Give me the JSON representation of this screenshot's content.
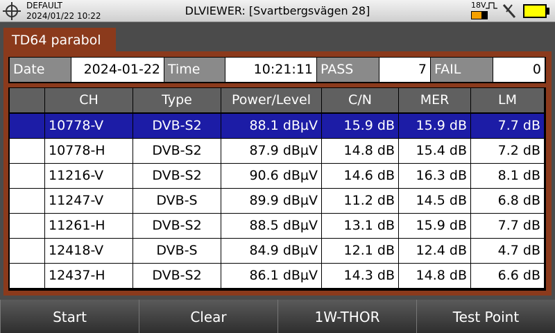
{
  "status": {
    "profile": "DEFAULT",
    "datetime": "2024/01/22 10:22",
    "title": "DLVIEWER: [Svartbergsvägen 28]",
    "voltage": "18V"
  },
  "tab": "TD64 parabol",
  "summary": [
    {
      "label": "Date",
      "value": "2024-01-22"
    },
    {
      "label": "Time",
      "value": "10:21:11"
    },
    {
      "label": "PASS",
      "value": 7
    },
    {
      "label": "FAIL",
      "value": 0
    }
  ],
  "table": {
    "header": [
      "CH",
      "Type",
      "Power/Level",
      "C/N",
      "MER",
      "LM"
    ],
    "rows": [
      [
        "10778-V",
        "DVB-S2",
        "88.1 dBµV",
        "15.9 dB",
        "15.9 dB",
        "7.7 dB"
      ],
      [
        "10778-H",
        "DVB-S2",
        "87.9 dBµV",
        "14.8 dB",
        "15.4 dB",
        "7.2 dB"
      ],
      [
        "11216-V",
        "DVB-S2",
        "90.6 dBµV",
        "14.6 dB",
        "16.3 dB",
        "8.1 dB"
      ],
      [
        "11247-V",
        "DVB-S",
        "89.9 dBµV",
        "11.2 dB",
        "14.5 dB",
        "6.8 dB"
      ],
      [
        "11261-H",
        "DVB-S2",
        "88.5 dBµV",
        "13.1 dB",
        "15.9 dB",
        "7.7 dB"
      ],
      [
        "12418-V",
        "DVB-S",
        "84.9 dBµV",
        "12.1 dB",
        "12.4 dB",
        "4.7 dB"
      ],
      [
        "12437-H",
        "DVB-S2",
        "86.1 dBµV",
        "14.3 dB",
        "14.8 dB",
        "6.6 dB"
      ]
    ]
  },
  "buttons": [
    "Start",
    "Clear",
    "1W-THOR",
    "Test Point"
  ]
}
